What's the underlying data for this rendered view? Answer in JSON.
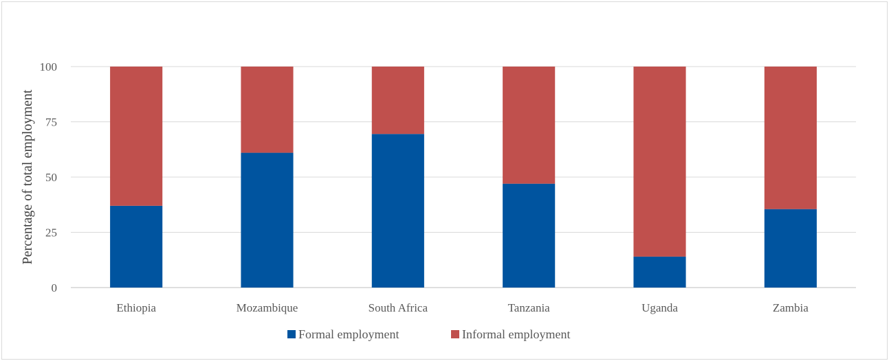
{
  "chart_data": {
    "type": "bar",
    "stacked": true,
    "title": "",
    "xlabel": "",
    "ylabel": "Percentage of total employment",
    "ylim": [
      0,
      100
    ],
    "yticks": [
      0,
      25,
      50,
      75,
      100
    ],
    "grid": true,
    "legend_position": "bottom",
    "categories": [
      "Ethiopia",
      "Mozambique",
      "South Africa",
      "Tanzania",
      "Uganda",
      "Zambia"
    ],
    "series": [
      {
        "name": "Formal employment",
        "color": "#00549f",
        "values": [
          37,
          61,
          69.5,
          47,
          14,
          35.5
        ]
      },
      {
        "name": "Informal employment",
        "color": "#c0504d",
        "values": [
          63,
          39,
          30.5,
          53,
          86,
          64.5
        ]
      }
    ]
  }
}
